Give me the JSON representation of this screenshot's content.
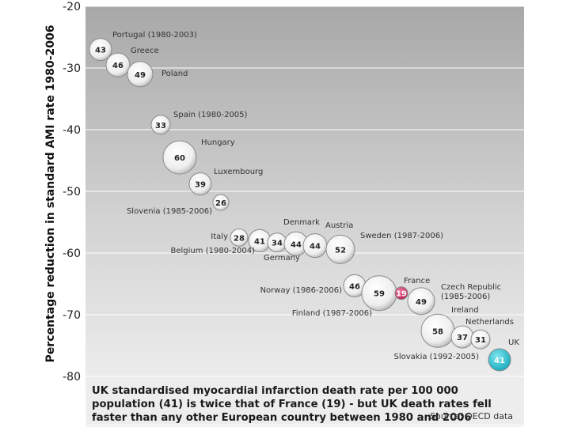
{
  "chart_data": {
    "type": "bubble",
    "ylabel": "Percentage reduction in standard AMI rate 1980-2006",
    "ylim": [
      -80,
      -20
    ],
    "yticks": [
      "-20",
      "-30",
      "-40",
      "-50",
      "-60",
      "-70",
      "-80"
    ],
    "grid": true,
    "points": [
      {
        "label": "Portugal (1980-2003)",
        "value": "43",
        "y": -27
      },
      {
        "label": "Greece",
        "value": "46",
        "y": -29.5
      },
      {
        "label": "Poland",
        "value": "49",
        "y": -31
      },
      {
        "label": "Spain (1980-2005)",
        "value": "33",
        "y": -39.2
      },
      {
        "label": "Hungary",
        "value": "60",
        "y": -44.5
      },
      {
        "label": "Luxembourg",
        "value": "39",
        "y": -48.8
      },
      {
        "label": "Slovenia (1985-2006)",
        "value": "26",
        "y": -51.8
      },
      {
        "label": "Italy",
        "value": "28",
        "y": -57.5
      },
      {
        "label": "Denmark",
        "value": "41",
        "y": -58
      },
      {
        "label": "Germany",
        "value": "34",
        "y": -58.3
      },
      {
        "label": "Belgium (1980-2004)",
        "value": "44",
        "y": -58.5
      },
      {
        "label": "Austria",
        "value": "44",
        "y": -58.8
      },
      {
        "label": "Sweden (1987-2006)",
        "value": "52",
        "y": -59.4
      },
      {
        "label": "Norway (1986-2006)",
        "value": "46",
        "y": -65.3
      },
      {
        "label": "Finland (1987-2006)",
        "value": "59",
        "y": -66.5
      },
      {
        "label": "France",
        "value": "19",
        "y": -66.5
      },
      {
        "label": "Czech Republic (1985-2006)",
        "value": "49",
        "y": -67.8
      },
      {
        "label": "Ireland",
        "value": "58",
        "y": -72.6
      },
      {
        "label": "Netherlands",
        "value": "37",
        "y": -73.6
      },
      {
        "label": "Slovakia (1992-2005)",
        "value": "31",
        "y": -74
      },
      {
        "label": "UK",
        "value": "41",
        "y": -77.3
      }
    ]
  },
  "colors": {
    "uk": "#22c4d4",
    "france": "#d23a6a",
    "bubble": "#f6f6f6"
  },
  "caption": {
    "text": "UK standardised myocardial infarction death rate per 100 000 population (41) is twice that of France (19) - but UK death rates fell faster than any other European country between 1980 and 2006",
    "source": "Source: OECD data"
  }
}
